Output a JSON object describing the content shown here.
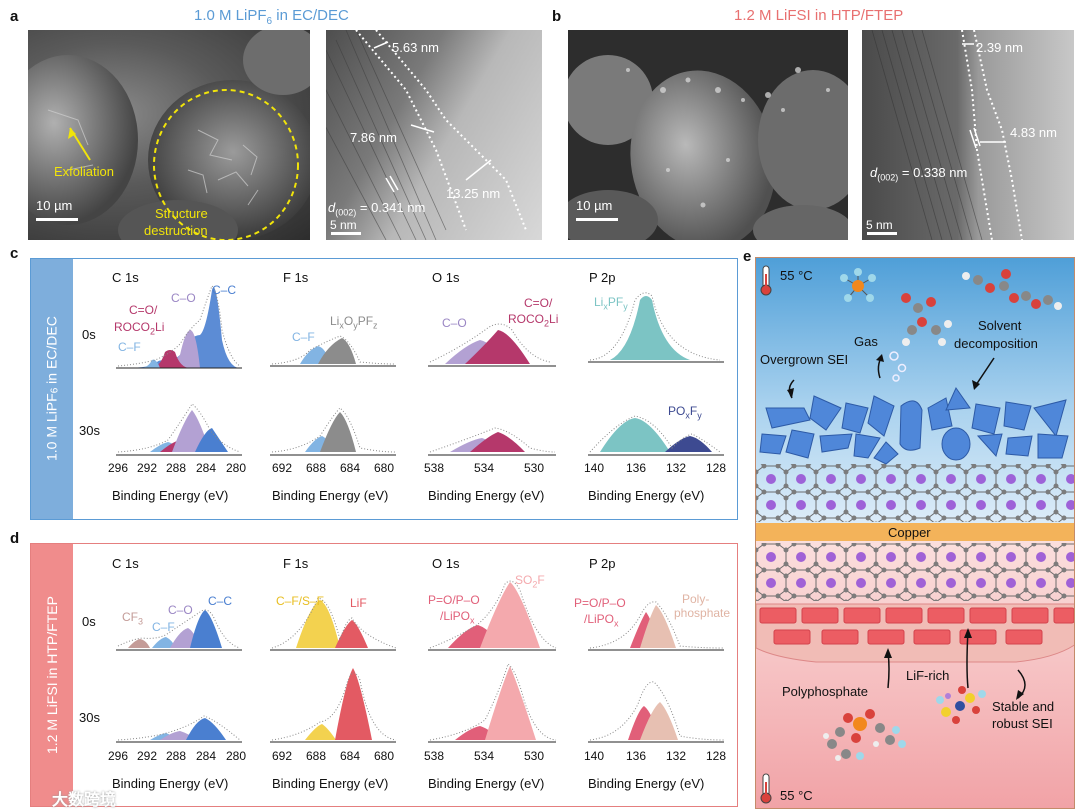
{
  "panel_a": {
    "label": "a",
    "title_prefix": "1.0 M LiPF",
    "title_sub": "6",
    "title_suffix": " in EC/DEC",
    "sem_scale": "10 µm",
    "annot_exfoliation": "Exfoliation",
    "annot_structure_1": "Structure",
    "annot_structure_2": "destruction",
    "tem_scale": "5 nm",
    "tem_thickness_1": "5.63 nm",
    "tem_thickness_2": "7.86 nm",
    "tem_thickness_3": "13.25 nm",
    "tem_d_prefix": "d",
    "tem_d_sub": "(002)",
    "tem_d_value": " = 0.341 nm"
  },
  "panel_b": {
    "label": "b",
    "title": "1.2 M LiFSI in HTP/FTEP",
    "sem_scale": "10 µm",
    "tem_scale": "5 nm",
    "tem_thickness_1": "2.39 nm",
    "tem_thickness_2": "4.83 nm",
    "tem_d_prefix": "d",
    "tem_d_sub": "(002)",
    "tem_d_value": " = 0.338 nm"
  },
  "panel_c": {
    "label": "c",
    "band_prefix": "1.0 M LiPF",
    "band_sub": "6",
    "band_suffix": " in EC/DEC",
    "row_labels": [
      "0s",
      "30s"
    ],
    "x_title": "Binding Energy (eV)",
    "spectra": [
      {
        "name": "C 1s",
        "ticks": [
          "296",
          "292",
          "288",
          "284",
          "280"
        ],
        "labels": [
          "C=O/",
          "ROCO",
          "2",
          "Li",
          "C–O",
          "C–C",
          "C–F"
        ]
      },
      {
        "name": "F 1s",
        "ticks": [
          "692",
          "688",
          "684",
          "680"
        ],
        "labels": [
          "C–F",
          "Li",
          "x",
          "O",
          "y",
          "PF",
          "z"
        ]
      },
      {
        "name": "O 1s",
        "ticks": [
          "538",
          "534",
          "530"
        ],
        "labels": [
          "C–O",
          "C=O/",
          "ROCO",
          "2",
          "Li"
        ]
      },
      {
        "name": "P 2p",
        "ticks": [
          "140",
          "136",
          "132",
          "128"
        ],
        "labels": [
          "Li",
          "x",
          "PF",
          "y",
          "PO",
          "x",
          "F",
          "y"
        ]
      }
    ]
  },
  "panel_d": {
    "label": "d",
    "band": "1.2 M LiFSI in HTP/FTEP",
    "row_labels": [
      "0s",
      "30s"
    ],
    "x_title": "Binding Energy (eV)",
    "spectra": [
      {
        "name": "C 1s",
        "ticks": [
          "296",
          "292",
          "288",
          "284",
          "280"
        ],
        "labels": [
          "CF",
          "3",
          "C–F",
          "C–O",
          "C–C"
        ]
      },
      {
        "name": "F 1s",
        "ticks": [
          "692",
          "688",
          "684",
          "680"
        ],
        "labels": [
          "C–F/S–F",
          "LiF"
        ]
      },
      {
        "name": "O 1s",
        "ticks": [
          "538",
          "534",
          "530"
        ],
        "labels": [
          "P=O/P–O",
          "/LiPO",
          "x",
          "SO",
          "2",
          "F"
        ]
      },
      {
        "name": "P 2p",
        "ticks": [
          "140",
          "136",
          "132",
          "128"
        ],
        "labels": [
          "P=O/P–O",
          "/LiPO",
          "x",
          "Poly-",
          "phosphate"
        ]
      }
    ]
  },
  "panel_e": {
    "label": "e",
    "temp_top": "55 °C",
    "temp_bottom": "55 °C",
    "gas": "Gas",
    "solvent_1": "Solvent",
    "solvent_2": "decomposition",
    "overgrown": "Overgrown SEI",
    "copper": "Copper",
    "lif_rich": "LiF-rich",
    "polyphosphate": "Polyphosphate",
    "stable_1": "Stable and",
    "stable_2": "robust SEI"
  },
  "watermark": "大数跨境",
  "colors": {
    "blue_title": "#5b9bd5",
    "red_title": "#e87070",
    "band_blue": "#7eaedc",
    "band_red": "#f08c8c",
    "frame_blue": "#5b9bd5",
    "frame_red": "#e57f7f",
    "cc": "#4a7fd0",
    "co": "#b3a1d3",
    "coroco": "#b5386b",
    "cf": "#82b4e3",
    "lixoypfz": "#8c8c8c",
    "lixpfy": "#7cc4c4",
    "poxfy": "#3d4a91",
    "lif": "#e35a63",
    "cfsf": "#f3d24f",
    "so2f": "#f4a9ad",
    "pop": "#e15f79",
    "polyp": "#e7c0b2",
    "cf3": "#c49c98",
    "copper": "#f3b35a"
  }
}
